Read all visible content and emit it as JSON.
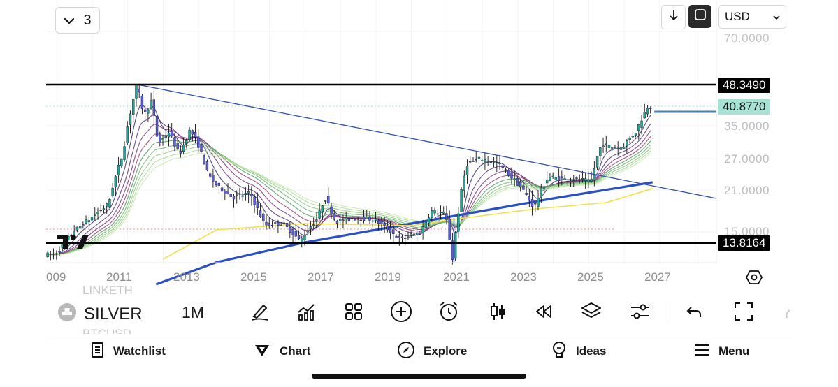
{
  "toolbar_top": {
    "layers_count": "3",
    "currency": "USD",
    "down_arrow_icon": "arrow-down-icon",
    "fullscreen_icon": "fullscreen-icon"
  },
  "price_axis": {
    "labels": [
      "70.0000",
      "35.0000",
      "27.0000",
      "21.0000",
      "15.0000"
    ],
    "tags": [
      {
        "name": "resistance",
        "value": "48.3490",
        "bg": "#000000",
        "fg": "#ffffff"
      },
      {
        "name": "last-price",
        "value": "40.8770",
        "bg": "#a6e3d5",
        "fg": "#111111"
      },
      {
        "name": "support",
        "value": "13.8164",
        "bg": "#000000",
        "fg": "#ffffff"
      }
    ]
  },
  "time_axis": {
    "labels": [
      "009",
      "2011",
      "2013",
      "2015",
      "2017",
      "2019",
      "2021",
      "2023",
      "2025",
      "2027"
    ]
  },
  "chart_data": {
    "type": "candlestick",
    "symbol": "SILVER",
    "interval": "1M",
    "x_range": [
      2008.7,
      2027.6
    ],
    "y_levels_shown": [
      70,
      35,
      27,
      21,
      15
    ],
    "horizontal_lines": [
      48.349,
      13.8164
    ],
    "last_price": 40.877,
    "price_path": [
      [
        2009.0,
        12.5
      ],
      [
        2009.5,
        15.0
      ],
      [
        2010.0,
        17.0
      ],
      [
        2010.5,
        19.0
      ],
      [
        2010.9,
        28.0
      ],
      [
        2011.3,
        48.3
      ],
      [
        2011.5,
        38.0
      ],
      [
        2011.7,
        42.5
      ],
      [
        2011.9,
        30.5
      ],
      [
        2012.2,
        33.5
      ],
      [
        2012.5,
        28.0
      ],
      [
        2012.8,
        34.0
      ],
      [
        2013.0,
        31.0
      ],
      [
        2013.3,
        24.0
      ],
      [
        2013.6,
        21.5
      ],
      [
        2014.0,
        20.0
      ],
      [
        2014.5,
        20.5
      ],
      [
        2014.9,
        16.0
      ],
      [
        2015.4,
        16.2
      ],
      [
        2015.9,
        14.0
      ],
      [
        2016.4,
        17.0
      ],
      [
        2016.6,
        20.0
      ],
      [
        2016.9,
        16.5
      ],
      [
        2017.5,
        17.0
      ],
      [
        2018.0,
        16.8
      ],
      [
        2018.7,
        14.2
      ],
      [
        2019.3,
        15.0
      ],
      [
        2019.6,
        18.0
      ],
      [
        2020.0,
        17.5
      ],
      [
        2020.2,
        12.0
      ],
      [
        2020.6,
        26.0
      ],
      [
        2021.0,
        27.0
      ],
      [
        2021.5,
        26.0
      ],
      [
        2022.0,
        22.5
      ],
      [
        2022.5,
        18.5
      ],
      [
        2022.9,
        23.5
      ],
      [
        2023.4,
        23.0
      ],
      [
        2023.8,
        23.0
      ],
      [
        2024.1,
        22.5
      ],
      [
        2024.4,
        30.5
      ],
      [
        2024.8,
        29.5
      ],
      [
        2025.0,
        30.0
      ],
      [
        2025.4,
        34.0
      ],
      [
        2025.7,
        40.877
      ]
    ],
    "trendline": [
      [
        2011.3,
        48.3
      ],
      [
        2027.6,
        19.8
      ]
    ],
    "moving_averages": [
      {
        "name": "",
        "color": "#2b4fc4",
        "points": [
          [
            2011.8,
            8.0
          ],
          [
            2013.5,
            11.5
          ],
          [
            2016.0,
            13.9
          ],
          [
            2019.0,
            16.2
          ],
          [
            2021.0,
            18.0
          ],
          [
            2023.0,
            19.8
          ],
          [
            2025.8,
            22.5
          ]
        ]
      },
      {
        "name": "",
        "color": "#f2e04a",
        "points": [
          [
            2012.0,
            12.0
          ],
          [
            2013.5,
            15.3
          ],
          [
            2016.0,
            16.2
          ],
          [
            2019.0,
            15.9
          ],
          [
            2020.5,
            17.0
          ],
          [
            2022.5,
            18.3
          ],
          [
            2024.5,
            19.2
          ],
          [
            2025.8,
            21.3
          ]
        ]
      }
    ]
  },
  "bottom_toolbar": {
    "symbol": "SILVER",
    "interval": "1M",
    "ghost_row_top": "LINKETH",
    "ghost_row_bottom": "BTCUSD"
  },
  "bottom_nav": {
    "items": [
      {
        "label": "Watchlist",
        "icon": "watchlist-icon"
      },
      {
        "label": "Chart",
        "icon": "chart-icon"
      },
      {
        "label": "Explore",
        "icon": "compass-icon"
      },
      {
        "label": "Ideas",
        "icon": "ideas-icon"
      },
      {
        "label": "Menu",
        "icon": "menu-icon"
      }
    ]
  }
}
